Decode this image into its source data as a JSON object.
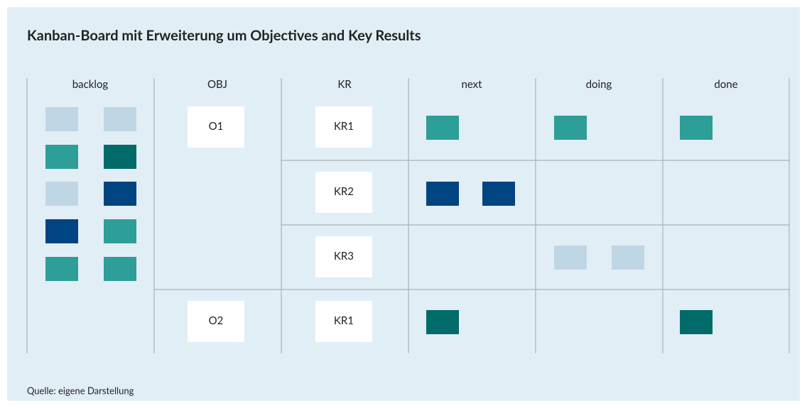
{
  "header": {
    "title": "Kanban-Board mit Erweiterung um Objectives and Key Results"
  },
  "columns": [
    "backlog",
    "OBJ",
    "KR",
    "next",
    "doing",
    "done"
  ],
  "objectives": [
    {
      "label": "O1",
      "key_results": [
        "KR1",
        "KR2",
        "KR3"
      ]
    },
    {
      "label": "O2",
      "key_results": [
        "KR1"
      ]
    }
  ],
  "footer": {
    "source": "Quelle: eigene Darstellung"
  }
}
